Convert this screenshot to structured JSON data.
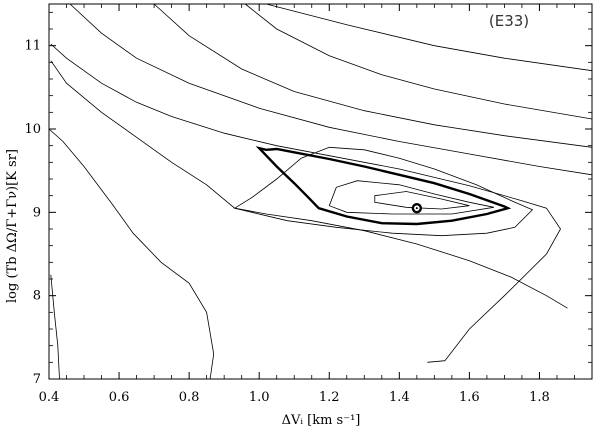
{
  "chart_data": {
    "type": "contour",
    "annotation": "(E33)",
    "xlabel": "ΔVᵢ [km s⁻¹]",
    "ylabel": "log (Tb ΔΩ/Γ+Γν)[K sr]",
    "xlim": [
      0.4,
      1.95
    ],
    "ylim": [
      7.0,
      11.5
    ],
    "x_ticks": [
      0.4,
      0.6,
      0.8,
      1.0,
      1.2,
      1.4,
      1.6,
      1.8
    ],
    "x_tick_labels": [
      "0.4",
      "0.6",
      "0.8",
      "1.0",
      "1.2",
      "1.4",
      "1.6",
      "1.8"
    ],
    "y_ticks": [
      7,
      8,
      9,
      10,
      11
    ],
    "y_tick_labels": [
      "7",
      "8",
      "9",
      "10",
      "11"
    ],
    "best_fit": {
      "x": 1.45,
      "y": 9.05
    },
    "contours": [
      {
        "name": "c-inner",
        "bold": false,
        "closed": true,
        "points": [
          [
            1.33,
            9.2
          ],
          [
            1.42,
            9.25
          ],
          [
            1.52,
            9.16
          ],
          [
            1.6,
            9.08
          ],
          [
            1.52,
            9.04
          ],
          [
            1.42,
            9.06
          ],
          [
            1.33,
            9.12
          ]
        ]
      },
      {
        "name": "c-mid",
        "bold": false,
        "closed": true,
        "points": [
          [
            1.2,
            9.08
          ],
          [
            1.22,
            9.3
          ],
          [
            1.28,
            9.38
          ],
          [
            1.4,
            9.33
          ],
          [
            1.5,
            9.22
          ],
          [
            1.6,
            9.12
          ],
          [
            1.67,
            9.06
          ],
          [
            1.55,
            8.98
          ],
          [
            1.38,
            8.98
          ],
          [
            1.25,
            9.0
          ]
        ]
      },
      {
        "name": "c-bold",
        "bold": true,
        "closed": true,
        "points": [
          [
            1.0,
            9.77
          ],
          [
            1.02,
            9.75
          ],
          [
            1.05,
            9.76
          ],
          [
            1.1,
            9.72
          ],
          [
            1.2,
            9.64
          ],
          [
            1.3,
            9.55
          ],
          [
            1.4,
            9.45
          ],
          [
            1.5,
            9.35
          ],
          [
            1.6,
            9.22
          ],
          [
            1.7,
            9.07
          ],
          [
            1.71,
            9.05
          ],
          [
            1.65,
            8.98
          ],
          [
            1.55,
            8.9
          ],
          [
            1.45,
            8.86
          ],
          [
            1.35,
            8.87
          ],
          [
            1.25,
            8.95
          ],
          [
            1.17,
            9.05
          ],
          [
            1.14,
            9.18
          ],
          [
            1.1,
            9.35
          ],
          [
            1.05,
            9.55
          ]
        ]
      },
      {
        "name": "c-4",
        "bold": false,
        "closed": true,
        "points": [
          [
            0.93,
            9.05
          ],
          [
            0.98,
            9.18
          ],
          [
            1.05,
            9.4
          ],
          [
            1.12,
            9.65
          ],
          [
            1.2,
            9.78
          ],
          [
            1.3,
            9.75
          ],
          [
            1.4,
            9.65
          ],
          [
            1.5,
            9.52
          ],
          [
            1.62,
            9.33
          ],
          [
            1.73,
            9.12
          ],
          [
            1.78,
            9.03
          ],
          [
            1.73,
            8.82
          ],
          [
            1.65,
            8.75
          ],
          [
            1.52,
            8.72
          ],
          [
            1.38,
            8.75
          ],
          [
            1.22,
            8.82
          ],
          [
            1.08,
            8.9
          ]
        ]
      },
      {
        "name": "c-5",
        "bold": false,
        "closed": false,
        "points": [
          [
            0.405,
            10.82
          ],
          [
            0.45,
            10.55
          ],
          [
            0.55,
            10.2
          ],
          [
            0.65,
            9.9
          ],
          [
            0.75,
            9.6
          ],
          [
            0.85,
            9.33
          ],
          [
            0.93,
            9.05
          ],
          [
            1.02,
            8.98
          ],
          [
            1.15,
            8.9
          ],
          [
            1.3,
            8.78
          ],
          [
            1.45,
            8.62
          ],
          [
            1.6,
            8.42
          ],
          [
            1.72,
            8.22
          ],
          [
            1.82,
            8.0
          ],
          [
            1.88,
            7.85
          ]
        ]
      },
      {
        "name": "c-6",
        "bold": false,
        "closed": false,
        "points": [
          [
            0.405,
            11.02
          ],
          [
            0.45,
            10.85
          ],
          [
            0.55,
            10.55
          ],
          [
            0.65,
            10.32
          ],
          [
            0.75,
            10.15
          ],
          [
            0.9,
            9.95
          ],
          [
            1.05,
            9.8
          ],
          [
            1.2,
            9.68
          ],
          [
            1.4,
            9.52
          ],
          [
            1.6,
            9.32
          ],
          [
            1.75,
            9.14
          ],
          [
            1.82,
            9.05
          ],
          [
            1.86,
            8.8
          ],
          [
            1.82,
            8.5
          ],
          [
            1.7,
            8.0
          ],
          [
            1.6,
            7.6
          ],
          [
            1.53,
            7.22
          ],
          [
            1.48,
            7.2
          ]
        ]
      },
      {
        "name": "c-7",
        "bold": false,
        "closed": false,
        "points": [
          [
            0.46,
            11.5
          ],
          [
            0.55,
            11.15
          ],
          [
            0.65,
            10.85
          ],
          [
            0.8,
            10.55
          ],
          [
            1.0,
            10.25
          ],
          [
            1.2,
            10.02
          ],
          [
            1.4,
            9.85
          ],
          [
            1.6,
            9.7
          ],
          [
            1.8,
            9.55
          ],
          [
            1.95,
            9.45
          ]
        ]
      },
      {
        "name": "c-8",
        "bold": false,
        "closed": false,
        "points": [
          [
            0.7,
            11.5
          ],
          [
            0.8,
            11.12
          ],
          [
            0.95,
            10.72
          ],
          [
            1.1,
            10.45
          ],
          [
            1.3,
            10.22
          ],
          [
            1.5,
            10.05
          ],
          [
            1.7,
            9.92
          ],
          [
            1.95,
            9.78
          ]
        ]
      },
      {
        "name": "c-9",
        "bold": false,
        "closed": false,
        "points": [
          [
            0.96,
            11.5
          ],
          [
            1.05,
            11.2
          ],
          [
            1.2,
            10.88
          ],
          [
            1.35,
            10.65
          ],
          [
            1.5,
            10.48
          ],
          [
            1.7,
            10.3
          ],
          [
            1.95,
            10.12
          ]
        ]
      },
      {
        "name": "c-10",
        "bold": false,
        "closed": false,
        "points": [
          [
            1.02,
            11.5
          ],
          [
            1.25,
            11.25
          ],
          [
            1.5,
            11.0
          ],
          [
            1.7,
            10.85
          ],
          [
            1.95,
            10.7
          ]
        ]
      },
      {
        "name": "c-left",
        "bold": false,
        "closed": false,
        "points": [
          [
            0.4,
            10.0
          ],
          [
            0.44,
            9.85
          ],
          [
            0.5,
            9.55
          ],
          [
            0.58,
            9.1
          ],
          [
            0.64,
            8.75
          ],
          [
            0.72,
            8.4
          ],
          [
            0.8,
            8.15
          ],
          [
            0.85,
            7.8
          ],
          [
            0.87,
            7.3
          ],
          [
            0.86,
            7.0
          ]
        ]
      },
      {
        "name": "c-edge",
        "bold": false,
        "closed": false,
        "points": [
          [
            0.405,
            8.25
          ],
          [
            0.415,
            7.8
          ],
          [
            0.425,
            7.4
          ],
          [
            0.43,
            7.0
          ]
        ]
      }
    ]
  }
}
